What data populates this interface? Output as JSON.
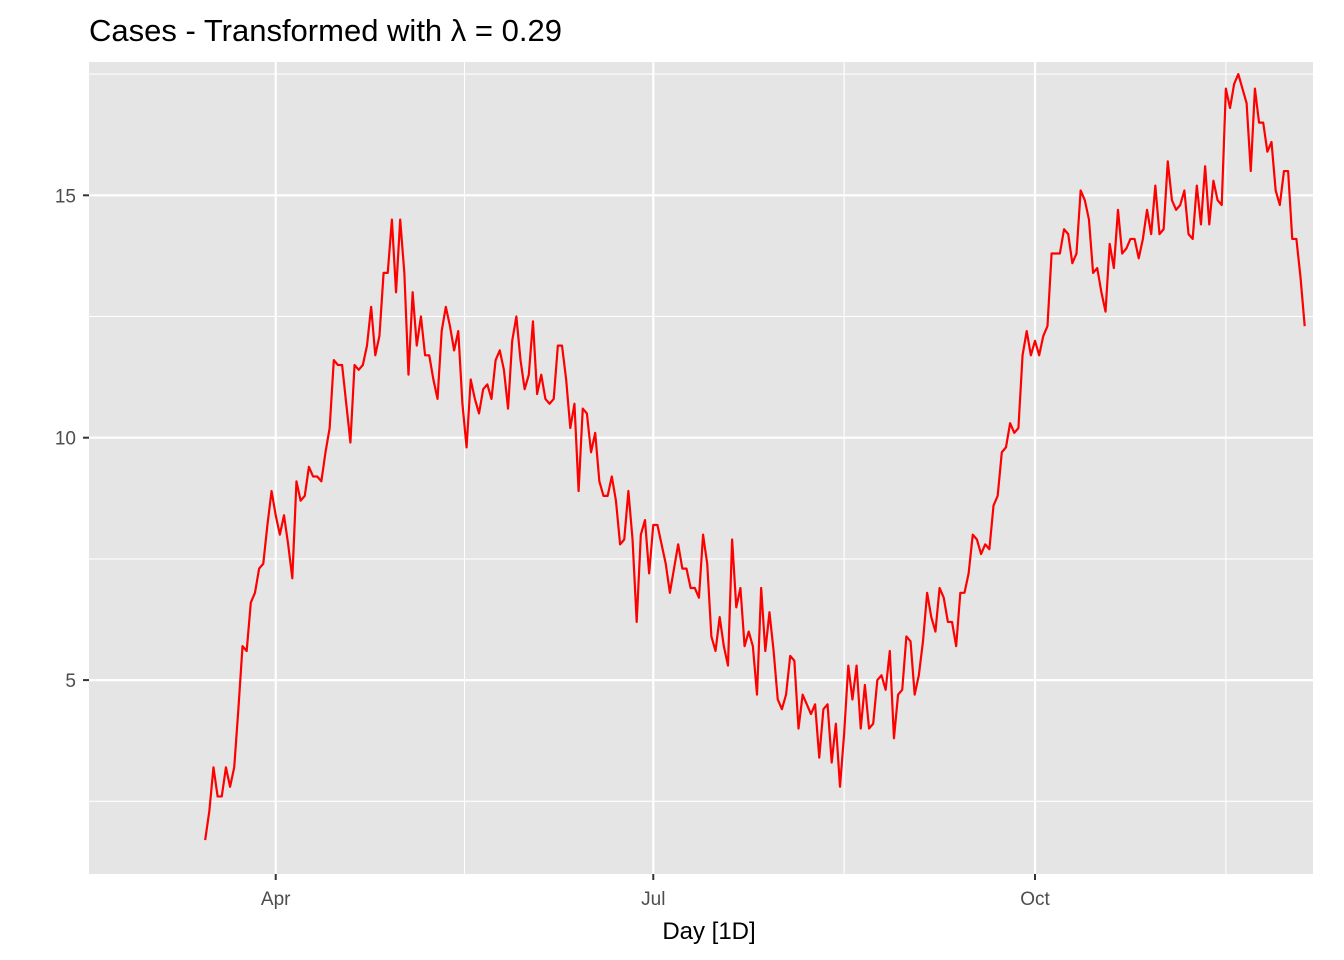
{
  "chart_data": {
    "type": "line",
    "title": "Cases - Transformed with λ = 0.29",
    "xlabel": "Day [1D]",
    "ylabel": "",
    "x_ticks": [
      {
        "date": "2020-04-01",
        "label": "Apr"
      },
      {
        "date": "2020-07-01",
        "label": "Jul"
      },
      {
        "date": "2020-10-01",
        "label": "Oct"
      }
    ],
    "y_ticks": [
      5,
      10,
      15
    ],
    "xlim": [
      "2020-02-16",
      "2020-12-07"
    ],
    "ylim": [
      1.0,
      17.75
    ],
    "grid": true,
    "legend": "none",
    "series": [
      {
        "color": "#ff0000",
        "start_date": "2020-03-15",
        "values": [
          1.7,
          2.3,
          3.2,
          2.6,
          2.6,
          3.2,
          2.8,
          3.2,
          4.4,
          5.7,
          5.6,
          6.6,
          6.8,
          7.3,
          7.4,
          8.2,
          8.9,
          8.4,
          8.0,
          8.4,
          7.8,
          7.1,
          9.1,
          8.7,
          8.8,
          9.4,
          9.2,
          9.2,
          9.1,
          9.7,
          10.2,
          11.6,
          11.5,
          11.5,
          10.7,
          9.9,
          11.5,
          11.4,
          11.5,
          11.9,
          12.7,
          11.7,
          12.1,
          13.4,
          13.4,
          14.5,
          13.0,
          14.5,
          13.4,
          11.3,
          13.0,
          11.9,
          12.5,
          11.7,
          11.7,
          11.2,
          10.8,
          12.2,
          12.7,
          12.3,
          11.8,
          12.2,
          10.7,
          9.8,
          11.2,
          10.8,
          10.5,
          11.0,
          11.1,
          10.8,
          11.6,
          11.8,
          11.4,
          10.6,
          12.0,
          12.5,
          11.6,
          11.0,
          11.3,
          12.4,
          10.9,
          11.3,
          10.8,
          10.7,
          10.8,
          11.9,
          11.9,
          11.2,
          10.2,
          10.7,
          8.9,
          10.6,
          10.5,
          9.7,
          10.1,
          9.1,
          8.8,
          8.8,
          9.2,
          8.7,
          7.8,
          7.9,
          8.9,
          7.9,
          6.2,
          8.0,
          8.3,
          7.2,
          8.2,
          8.2,
          7.8,
          7.4,
          6.8,
          7.3,
          7.8,
          7.3,
          7.3,
          6.9,
          6.9,
          6.7,
          8.0,
          7.4,
          5.9,
          5.6,
          6.3,
          5.7,
          5.3,
          7.9,
          6.5,
          6.9,
          5.7,
          6.0,
          5.7,
          4.7,
          6.9,
          5.6,
          6.4,
          5.6,
          4.6,
          4.4,
          4.7,
          5.5,
          5.4,
          4.0,
          4.7,
          4.5,
          4.3,
          4.5,
          3.4,
          4.4,
          4.5,
          3.3,
          4.1,
          2.8,
          3.9,
          5.3,
          4.6,
          5.3,
          4.0,
          4.9,
          4.0,
          4.1,
          5.0,
          5.1,
          4.8,
          5.6,
          3.8,
          4.7,
          4.8,
          5.9,
          5.8,
          4.7,
          5.1,
          5.8,
          6.8,
          6.3,
          6.0,
          6.9,
          6.7,
          6.2,
          6.2,
          5.7,
          6.8,
          6.8,
          7.2,
          8.0,
          7.9,
          7.6,
          7.8,
          7.7,
          8.6,
          8.8,
          9.7,
          9.8,
          10.3,
          10.1,
          10.2,
          11.7,
          12.2,
          11.7,
          12.0,
          11.7,
          12.1,
          12.3,
          13.8,
          13.8,
          13.8,
          14.3,
          14.2,
          13.6,
          13.8,
          15.1,
          14.9,
          14.5,
          13.4,
          13.5,
          13.0,
          12.6,
          14.0,
          13.5,
          14.7,
          13.8,
          13.9,
          14.1,
          14.1,
          13.7,
          14.1,
          14.7,
          14.2,
          15.2,
          14.2,
          14.3,
          15.7,
          14.9,
          14.7,
          14.8,
          15.1,
          14.2,
          14.1,
          15.2,
          14.4,
          15.6,
          14.4,
          15.3,
          14.9,
          14.8,
          17.2,
          16.8,
          17.3,
          17.5,
          17.2,
          16.9,
          15.5,
          17.2,
          16.5,
          16.5,
          15.9,
          16.1,
          15.1,
          14.8,
          15.5,
          15.5,
          14.1,
          14.1,
          13.3,
          12.3
        ]
      }
    ]
  }
}
